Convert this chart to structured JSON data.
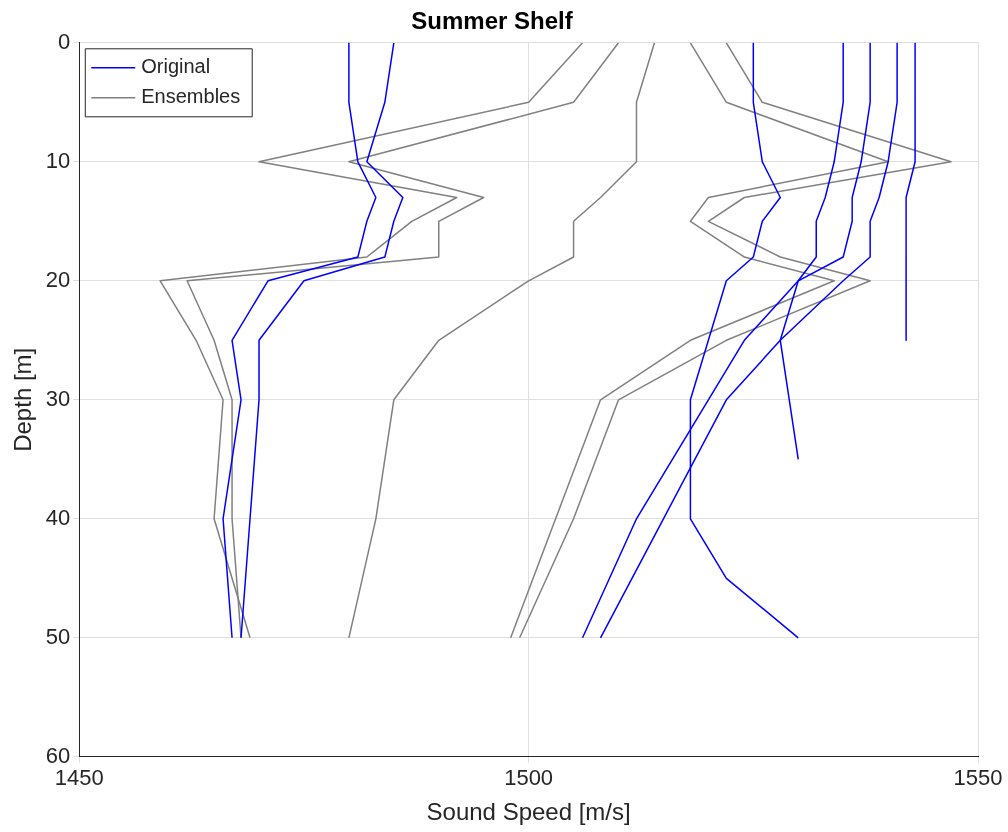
{
  "chart_data": {
    "type": "line",
    "title": "Summer Shelf",
    "xlabel": "Sound Speed [m/s]",
    "ylabel": "Depth [m]",
    "xlim": [
      1450,
      1550
    ],
    "xticks": [
      1450,
      1500,
      1550
    ],
    "ylim": [
      60,
      0
    ],
    "yticks": [
      0,
      10,
      20,
      30,
      40,
      50,
      60
    ],
    "grid": true,
    "legend": "top left",
    "marker": "none",
    "line_style": "solid",
    "series": [
      {
        "name": "Original",
        "color": "#0000ff",
        "x": [
          1480,
          1480,
          1481,
          1483,
          1482,
          1481,
          1471,
          1467,
          1468,
          1466,
          1467
        ],
        "values": [
          0,
          5,
          10,
          13,
          15,
          18,
          20,
          25,
          30,
          40,
          50
        ]
      },
      {
        "color": "#0000ff",
        "x": [
          1485,
          1484,
          1482,
          1486,
          1485,
          1484,
          1475,
          1470,
          1470,
          1469,
          1468
        ],
        "values": [
          0,
          5,
          10,
          13,
          15,
          18,
          20,
          25,
          30,
          40,
          50
        ]
      },
      {
        "color": "#0000ff",
        "x": [
          1538,
          1538,
          1537,
          1536,
          1536,
          1535,
          1530,
          1524,
          1520,
          1512,
          1506
        ],
        "values": [
          0,
          5,
          10,
          13,
          15,
          18,
          20,
          25,
          30,
          40,
          50
        ]
      },
      {
        "color": "#0000ff",
        "x": [
          1541,
          1541,
          1540,
          1539,
          1538,
          1538,
          1535,
          1528,
          1522,
          1515,
          1508
        ],
        "values": [
          0,
          5,
          10,
          13,
          15,
          18,
          20,
          25,
          30,
          40,
          50
        ]
      },
      {
        "color": "#0000ff",
        "x": [
          1543,
          1543,
          1543,
          1542,
          1542,
          1542,
          1542,
          1542
        ],
        "values": [
          0,
          5,
          10,
          13,
          15,
          18,
          20,
          25
        ]
      },
      {
        "color": "#0000ff",
        "x": [
          1525,
          1525,
          1526,
          1528,
          1526,
          1525,
          1522,
          1520,
          1518,
          1518,
          1522,
          1530
        ],
        "values": [
          0,
          5,
          10,
          13,
          15,
          18,
          20,
          25,
          30,
          40,
          45,
          50
        ]
      },
      {
        "color": "#0000ff",
        "x": [
          1535,
          1535,
          1534,
          1533,
          1532,
          1532,
          1530,
          1528,
          1530
        ],
        "values": [
          0,
          5,
          10,
          13,
          15,
          18,
          20,
          25,
          35
        ]
      },
      {
        "name": "Ensembles",
        "color": "#808080",
        "x": [
          1506,
          1500,
          1470,
          1492,
          1487,
          1482,
          1459,
          1463,
          1466,
          1465,
          1469
        ],
        "values": [
          0,
          5,
          10,
          13,
          15,
          18,
          20,
          25,
          30,
          40,
          50
        ]
      },
      {
        "color": "#808080",
        "x": [
          1522,
          1526,
          1547,
          1524,
          1520,
          1528,
          1538,
          1522,
          1510,
          1505,
          1499
        ],
        "values": [
          0,
          5,
          10,
          13,
          15,
          18,
          20,
          25,
          30,
          40,
          50
        ]
      },
      {
        "color": "#808080",
        "x": [
          1510,
          1505,
          1480,
          1495,
          1490,
          1490,
          1462,
          1465,
          1467,
          1467,
          1468
        ],
        "values": [
          0,
          5,
          10,
          13,
          15,
          18,
          20,
          25,
          30,
          40,
          50
        ]
      },
      {
        "color": "#808080",
        "x": [
          1518,
          1522,
          1540,
          1520,
          1518,
          1524,
          1534,
          1518,
          1508,
          1503,
          1498
        ],
        "values": [
          0,
          5,
          10,
          13,
          15,
          18,
          20,
          25,
          30,
          40,
          50
        ]
      },
      {
        "color": "#808080",
        "x": [
          1514,
          1512,
          1512,
          1508,
          1505,
          1505,
          1500,
          1490,
          1485,
          1483,
          1480
        ],
        "values": [
          0,
          5,
          10,
          13,
          15,
          18,
          20,
          25,
          30,
          40,
          50
        ]
      }
    ]
  }
}
